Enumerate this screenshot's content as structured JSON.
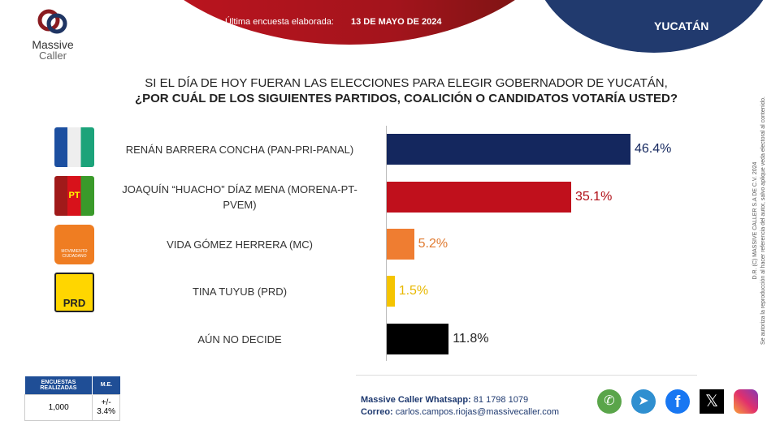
{
  "header": {
    "brand_line1": "Massive",
    "brand_line2": "Caller",
    "survey_label": "Última encuesta elaborada:",
    "survey_date": "13 DE MAYO DE 2024",
    "region": "YUCATÁN"
  },
  "question": {
    "line1": "SI EL DÍA DE HOY FUERAN LAS ELECCIONES PARA ELEGIR GOBERNADOR DE YUCATÁN,",
    "line2": "¿POR CUÁL DE LOS SIGUIENTES PARTIDOS, COALICIÓN  O CANDIDATOS VOTARÍA USTED?"
  },
  "chart_data": {
    "type": "bar",
    "orientation": "horizontal",
    "title": "SI EL DÍA DE HOY FUERAN LAS ELECCIONES PARA ELEGIR GOBERNADOR DE YUCATÁN, ¿POR CUÁL DE LOS SIGUIENTES PARTIDOS, COALICIÓN  O CANDIDATOS VOTARÍA USTED?",
    "categories": [
      "RENÁN BARRERA CONCHA  (PAN-PRI-PANAL)",
      "JOAQUÍN “HUACHO” DÍAZ MENA  (MORENA-PT-PVEM)",
      "VIDA GÓMEZ HERRERA (MC)",
      "TINA TUYUB (PRD)",
      "AÚN NO DECIDE"
    ],
    "values": [
      46.4,
      35.1,
      5.2,
      1.5,
      11.8
    ],
    "value_labels": [
      "46.4%",
      "35.1%",
      "5.2%",
      "1.5%",
      "11.8%"
    ],
    "colors": [
      "#14275e",
      "#c0101c",
      "#ef7d31",
      "#f5c400",
      "#000000"
    ],
    "label_colors": [
      "#14275e",
      "#b01018",
      "#e07a30",
      "#e8b800",
      "#222222"
    ],
    "xlim": [
      0,
      50
    ]
  },
  "party_logos": [
    "pan-pri-panal-logo",
    "morena-pt-pvem-logo",
    "mc-logo",
    "prd-logo"
  ],
  "party_logo_text": {
    "pt": "PT",
    "prd": "PRD",
    "mc": "MOVIMIENTO CIUDADANO"
  },
  "stats": {
    "col1": "ENCUESTAS REALIZADAS",
    "col2": "M.E.",
    "val1": "1,000",
    "val2": "+/- 3.4%"
  },
  "contact": {
    "whatsapp_label": "Massive Caller Whatsapp:",
    "whatsapp": "81 1798 1079",
    "email_label": "Correo:",
    "email": "carlos.campos.riojas@massivecaller.com"
  },
  "social": [
    "whatsapp-icon",
    "telegram-icon",
    "facebook-icon",
    "x-icon",
    "instagram-icon"
  ],
  "legal": {
    "line1": "D.R.  (C) MASSIVE CALLER S.A DE C.V.  2024",
    "line2": "Se autoriza la reproducción al hacer referencia del autor, salvo aplique veda electoral al contenido."
  }
}
